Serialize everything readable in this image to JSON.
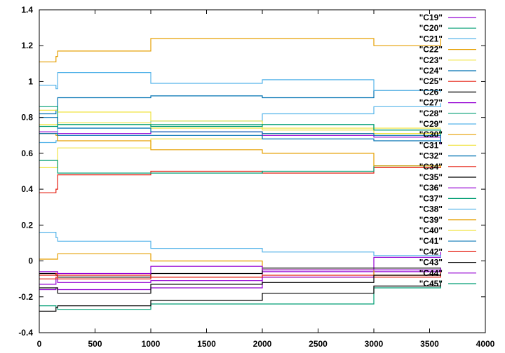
{
  "chart_data": {
    "type": "line",
    "title": "",
    "xlabel": "",
    "ylabel": "",
    "xlim": [
      0,
      4000
    ],
    "ylim": [
      -0.4,
      1.4
    ],
    "x_ticks": [
      "0",
      "500",
      "1000",
      "1500",
      "2000",
      "2500",
      "3000",
      "3500",
      "4000"
    ],
    "y_ticks": [
      "-0.4",
      "-0.2",
      "0",
      "0.2",
      "0.4",
      "0.6",
      "0.8",
      "1",
      "1.2",
      "1.4"
    ],
    "grid": false,
    "legend_position": "top-right",
    "step": true,
    "series": [
      {
        "name": "\"C19\"",
        "color": "#9400d3",
        "x": [
          0,
          150,
          165,
          1000,
          2000,
          3000,
          3600
        ],
        "y": [
          -0.13,
          -0.1,
          -0.12,
          -0.11,
          -0.06,
          0.02,
          0.05
        ]
      },
      {
        "name": "\"C20\"",
        "color": "#009e73",
        "x": [
          0,
          150,
          165,
          1000,
          2000,
          3000,
          3600
        ],
        "y": [
          -0.25,
          -0.26,
          -0.27,
          -0.24,
          -0.24,
          -0.15,
          -0.11
        ]
      },
      {
        "name": "\"C21\"",
        "color": "#56b4e9",
        "x": [
          0,
          150,
          165,
          1000,
          2000,
          3000,
          3600
        ],
        "y": [
          0.16,
          0.13,
          0.11,
          0.07,
          0.05,
          0.03,
          0.02
        ]
      },
      {
        "name": "\"C22\"",
        "color": "#e69f00",
        "x": [
          0,
          150,
          165,
          1000,
          2000,
          3000,
          3600
        ],
        "y": [
          1.11,
          1.14,
          1.17,
          1.24,
          1.24,
          1.2,
          1.24
        ]
      },
      {
        "name": "\"C23\"",
        "color": "#f0e442",
        "x": [
          0,
          150,
          165,
          1000,
          2000,
          3000,
          3600
        ],
        "y": [
          0.52,
          0.52,
          0.63,
          0.68,
          0.71,
          0.71,
          0.72
        ]
      },
      {
        "name": "\"C24\"",
        "color": "#0072b2",
        "x": [
          0,
          150,
          165,
          1000,
          2000,
          3000,
          3600
        ],
        "y": [
          0.82,
          0.84,
          0.91,
          0.92,
          0.91,
          0.95,
          0.95
        ]
      },
      {
        "name": "\"C25\"",
        "color": "#e51e10",
        "x": [
          0,
          150,
          165,
          1000,
          2000,
          3000,
          3600
        ],
        "y": [
          0.38,
          0.4,
          0.48,
          0.5,
          0.49,
          0.52,
          0.53
        ]
      },
      {
        "name": "\"C26\"",
        "color": "#000000",
        "x": [
          0,
          150,
          165,
          1000,
          2000,
          3000,
          3600
        ],
        "y": [
          -0.07,
          -0.08,
          -0.09,
          -0.07,
          -0.04,
          -0.04,
          -0.05
        ]
      },
      {
        "name": "\"C27\"",
        "color": "#9400d3",
        "x": [
          0,
          150,
          165,
          1000,
          2000,
          3000,
          3600
        ],
        "y": [
          0.72,
          0.72,
          0.71,
          0.72,
          0.7,
          0.69,
          0.65
        ]
      },
      {
        "name": "\"C28\"",
        "color": "#009e73",
        "x": [
          0,
          150,
          165,
          1000,
          2000,
          3000,
          3600
        ],
        "y": [
          0.56,
          0.56,
          0.49,
          0.49,
          0.5,
          0.53,
          0.53
        ]
      },
      {
        "name": "\"C29\"",
        "color": "#56b4e9",
        "x": [
          0,
          150,
          165,
          1000,
          2000,
          3000,
          3600
        ],
        "y": [
          0.66,
          0.67,
          0.74,
          0.78,
          0.82,
          0.86,
          0.88
        ]
      },
      {
        "name": "\"C30\"",
        "color": "#e69f00",
        "x": [
          0,
          150,
          165,
          1000,
          2000,
          3000,
          3600
        ],
        "y": [
          0.71,
          0.7,
          0.67,
          0.62,
          0.6,
          0.53,
          0.52
        ]
      },
      {
        "name": "\"C31\"",
        "color": "#f0e442",
        "x": [
          0,
          150,
          165,
          1000,
          2000,
          3000,
          3600
        ],
        "y": [
          0.84,
          0.84,
          0.83,
          0.78,
          0.74,
          0.71,
          0.69
        ]
      },
      {
        "name": "\"C32\"",
        "color": "#0072b2",
        "x": [
          0,
          150,
          165,
          1000,
          2000,
          3000,
          3600
        ],
        "y": [
          0.71,
          0.71,
          0.7,
          0.7,
          0.68,
          0.67,
          0.66
        ]
      },
      {
        "name": "\"C34\"",
        "color": "#e51e10",
        "x": [
          0,
          150,
          165,
          1000,
          2000,
          3000,
          3600
        ],
        "y": [
          -0.1,
          -0.09,
          -0.08,
          -0.09,
          -0.09,
          -0.09,
          -0.07
        ]
      },
      {
        "name": "\"C35\"",
        "color": "#000000",
        "x": [
          0,
          150,
          165,
          1000,
          2000,
          3000,
          3600
        ],
        "y": [
          -0.28,
          -0.26,
          -0.25,
          -0.22,
          -0.18,
          -0.14,
          -0.12
        ]
      },
      {
        "name": "\"C36\"",
        "color": "#9400d3",
        "x": [
          0,
          150,
          165,
          1000,
          2000,
          3000,
          3600
        ],
        "y": [
          -0.16,
          -0.15,
          -0.16,
          -0.15,
          -0.09,
          -0.06,
          -0.04
        ]
      },
      {
        "name": "\"C37\"",
        "color": "#009e73",
        "x": [
          0,
          150,
          165,
          1000,
          2000,
          3000,
          3600
        ],
        "y": [
          0.86,
          0.86,
          0.76,
          0.76,
          0.76,
          0.73,
          0.7
        ]
      },
      {
        "name": "\"C38\"",
        "color": "#56b4e9",
        "x": [
          0,
          150,
          165,
          1000,
          2000,
          3000,
          3600
        ],
        "y": [
          0.98,
          0.96,
          1.05,
          0.99,
          1.01,
          0.95,
          0.94
        ]
      },
      {
        "name": "\"C39\"",
        "color": "#e69f00",
        "x": [
          0,
          150,
          165,
          1000,
          2000,
          3000,
          3600
        ],
        "y": [
          0.01,
          0.01,
          0.04,
          0.0,
          -0.05,
          -0.08,
          -0.08
        ]
      },
      {
        "name": "\"C40\"",
        "color": "#f0e442",
        "x": [
          0,
          150,
          165,
          1000,
          2000,
          3000,
          3600
        ],
        "y": [
          0.76,
          0.76,
          0.77,
          0.74,
          0.73,
          0.74,
          0.74
        ]
      },
      {
        "name": "\"C41\"",
        "color": "#0072b2",
        "x": [
          0,
          150,
          165,
          1000,
          2000,
          3000,
          3600
        ],
        "y": [
          0.8,
          0.8,
          0.74,
          0.72,
          0.71,
          0.7,
          0.67
        ]
      },
      {
        "name": "\"C42\"",
        "color": "#e51e10",
        "x": [
          0,
          150,
          165,
          1000,
          2000,
          3000,
          3600
        ],
        "y": [
          -0.08,
          -0.07,
          -0.1,
          -0.09,
          -0.08,
          -0.08,
          -0.06
        ]
      },
      {
        "name": "\"C43\"",
        "color": "#000000",
        "x": [
          0,
          150,
          165,
          1000,
          2000,
          3000,
          3600
        ],
        "y": [
          -0.15,
          -0.15,
          -0.18,
          -0.13,
          -0.12,
          -0.08,
          -0.07
        ]
      },
      {
        "name": "\"C44\"",
        "color": "#9400d3",
        "x": [
          0,
          150,
          165,
          1000,
          2000,
          3000,
          3600
        ],
        "y": [
          -0.06,
          -0.06,
          -0.07,
          -0.03,
          -0.05,
          -0.05,
          -0.06
        ]
      },
      {
        "name": "\"C45\"",
        "color": "#009e73",
        "x": [
          0,
          150,
          165,
          1000,
          2000,
          3000,
          3600
        ],
        "y": [
          0.75,
          0.75,
          0.76,
          0.75,
          0.76,
          0.73,
          0.71
        ]
      }
    ]
  }
}
